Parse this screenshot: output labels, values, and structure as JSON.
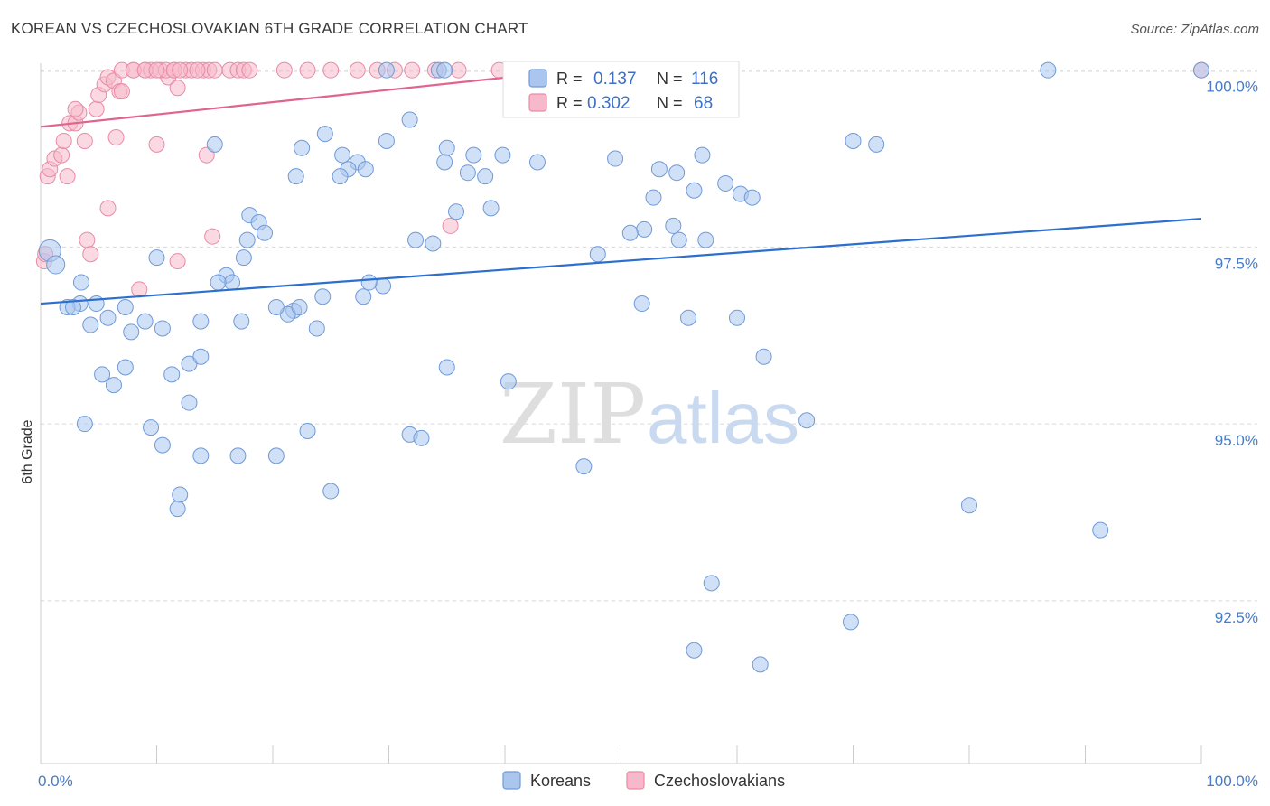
{
  "title": "KOREAN VS CZECHOSLOVAKIAN 6TH GRADE CORRELATION CHART",
  "source": "Source: ZipAtlas.com",
  "colors": {
    "korean_fill": "#aac6ee",
    "korean_stroke": "#6f9ad8",
    "korean_line": "#2d6fce",
    "czech_fill": "#f6b9cb",
    "czech_stroke": "#ea8aa6",
    "czech_line": "#e0648d",
    "tick_text": "#4a7cc4",
    "grid": "#d8d8d8"
  },
  "legend": {
    "r_label": "R =",
    "n_label": "N =",
    "koreans": {
      "r": "0.137",
      "n": "116"
    },
    "czechoslovakians": {
      "r": "0.302",
      "n": "68"
    }
  },
  "watermark": {
    "zip": "ZIP",
    "atlas": "atlas"
  },
  "chart_data": {
    "type": "scatter",
    "title": "KOREAN VS CZECHOSLOVAKIAN 6TH GRADE CORRELATION CHART",
    "xlabel": "",
    "ylabel": "6th Grade",
    "xlim": [
      0,
      100
    ],
    "ylim": [
      90.2,
      100.2
    ],
    "x_tick_labels": [
      "0.0%",
      "100.0%"
    ],
    "y_ticks": [
      92.5,
      95.0,
      97.5,
      100.0
    ],
    "y_tick_labels": [
      "92.5%",
      "95.0%",
      "97.5%",
      "100.0%"
    ],
    "series": [
      {
        "name": "Koreans",
        "trend": {
          "x": [
            0,
            100
          ],
          "y": [
            96.7,
            97.9
          ]
        },
        "points": [
          [
            0.8,
            97.45
          ],
          [
            1.3,
            97.25
          ],
          [
            3.4,
            96.7
          ],
          [
            2.3,
            96.65
          ],
          [
            2.8,
            96.65
          ],
          [
            4.8,
            96.7
          ],
          [
            3.5,
            97.0
          ],
          [
            4.3,
            96.4
          ],
          [
            5.8,
            96.5
          ],
          [
            7.3,
            96.65
          ],
          [
            9.0,
            96.45
          ],
          [
            7.8,
            96.3
          ],
          [
            10.5,
            96.35
          ],
          [
            13.8,
            96.45
          ],
          [
            16.0,
            97.1
          ],
          [
            17.5,
            97.35
          ],
          [
            16.5,
            97.0
          ],
          [
            10.0,
            97.35
          ],
          [
            5.3,
            95.7
          ],
          [
            6.3,
            95.55
          ],
          [
            7.3,
            95.8
          ],
          [
            11.3,
            95.7
          ],
          [
            12.8,
            95.85
          ],
          [
            13.8,
            95.95
          ],
          [
            12.8,
            95.3
          ],
          [
            9.5,
            94.95
          ],
          [
            10.5,
            94.7
          ],
          [
            3.8,
            95.0
          ],
          [
            13.8,
            94.55
          ],
          [
            17.0,
            94.55
          ],
          [
            20.3,
            94.55
          ],
          [
            23.0,
            94.9
          ],
          [
            12.0,
            94.0
          ],
          [
            11.8,
            93.8
          ],
          [
            25.0,
            94.05
          ],
          [
            31.8,
            94.85
          ],
          [
            32.8,
            94.8
          ],
          [
            35.0,
            95.8
          ],
          [
            40.3,
            95.6
          ],
          [
            46.8,
            94.4
          ],
          [
            51.8,
            96.7
          ],
          [
            55.8,
            96.5
          ],
          [
            60.0,
            96.5
          ],
          [
            62.3,
            95.95
          ],
          [
            66.0,
            95.05
          ],
          [
            80.0,
            93.85
          ],
          [
            91.3,
            93.5
          ],
          [
            69.8,
            92.2
          ],
          [
            57.8,
            92.75
          ],
          [
            56.3,
            91.8
          ],
          [
            62.0,
            91.6
          ],
          [
            70.0,
            99.0
          ],
          [
            72.0,
            98.95
          ],
          [
            57.0,
            98.8
          ],
          [
            59.0,
            98.4
          ],
          [
            60.3,
            98.25
          ],
          [
            61.3,
            98.2
          ],
          [
            56.3,
            98.3
          ],
          [
            53.3,
            98.6
          ],
          [
            54.8,
            98.55
          ],
          [
            52.8,
            98.2
          ],
          [
            54.5,
            97.8
          ],
          [
            52.0,
            97.75
          ],
          [
            55.0,
            97.6
          ],
          [
            57.3,
            97.6
          ],
          [
            48.0,
            97.4
          ],
          [
            50.8,
            97.7
          ],
          [
            42.8,
            98.7
          ],
          [
            39.8,
            98.8
          ],
          [
            35.0,
            98.9
          ],
          [
            37.3,
            98.8
          ],
          [
            38.3,
            98.5
          ],
          [
            36.8,
            98.55
          ],
          [
            35.8,
            98.0
          ],
          [
            38.8,
            98.05
          ],
          [
            31.8,
            99.3
          ],
          [
            34.8,
            98.7
          ],
          [
            33.8,
            97.55
          ],
          [
            32.3,
            97.6
          ],
          [
            29.8,
            99.0
          ],
          [
            26.0,
            98.8
          ],
          [
            27.3,
            98.7
          ],
          [
            28.0,
            98.6
          ],
          [
            26.5,
            98.6
          ],
          [
            25.8,
            98.5
          ],
          [
            24.5,
            99.1
          ],
          [
            22.5,
            98.9
          ],
          [
            22.0,
            98.5
          ],
          [
            29.5,
            96.95
          ],
          [
            28.3,
            97.0
          ],
          [
            27.8,
            96.8
          ],
          [
            23.8,
            96.35
          ],
          [
            24.3,
            96.8
          ],
          [
            21.8,
            96.6
          ],
          [
            21.3,
            96.55
          ],
          [
            22.3,
            96.65
          ],
          [
            20.3,
            96.65
          ],
          [
            17.3,
            96.45
          ],
          [
            18.0,
            97.95
          ],
          [
            18.8,
            97.85
          ],
          [
            19.3,
            97.7
          ],
          [
            17.8,
            97.6
          ],
          [
            15.0,
            98.95
          ],
          [
            15.3,
            97.0
          ],
          [
            34.3,
            100.0
          ],
          [
            34.8,
            100.0
          ],
          [
            29.8,
            100.0
          ],
          [
            86.8,
            100.0
          ],
          [
            100.0,
            100.0
          ],
          [
            52.5,
            100.0
          ],
          [
            56.5,
            100.0
          ],
          [
            43.5,
            100.0
          ],
          [
            42.3,
            99.6
          ],
          [
            49.5,
            98.75
          ]
        ]
      },
      {
        "name": "Czechoslovakians",
        "trend": {
          "x": [
            0,
            46
          ],
          "y": [
            99.2,
            100.0
          ]
        },
        "points": [
          [
            0.3,
            97.3
          ],
          [
            0.4,
            97.4
          ],
          [
            0.6,
            98.5
          ],
          [
            0.8,
            98.6
          ],
          [
            1.2,
            98.75
          ],
          [
            1.8,
            98.8
          ],
          [
            2.3,
            98.5
          ],
          [
            2.0,
            99.0
          ],
          [
            2.5,
            99.25
          ],
          [
            3.0,
            99.25
          ],
          [
            3.3,
            99.4
          ],
          [
            3.8,
            99.0
          ],
          [
            4.8,
            99.45
          ],
          [
            5.0,
            99.65
          ],
          [
            5.5,
            99.8
          ],
          [
            5.8,
            99.9
          ],
          [
            6.3,
            99.85
          ],
          [
            6.8,
            99.7
          ],
          [
            7.0,
            99.7
          ],
          [
            6.5,
            99.05
          ],
          [
            10.0,
            98.95
          ],
          [
            14.3,
            98.8
          ],
          [
            14.8,
            97.65
          ],
          [
            11.8,
            97.3
          ],
          [
            8.5,
            96.9
          ],
          [
            5.8,
            98.05
          ],
          [
            4.0,
            97.6
          ],
          [
            4.3,
            97.4
          ],
          [
            3.0,
            99.45
          ],
          [
            11.0,
            99.9
          ],
          [
            11.8,
            99.75
          ],
          [
            7.0,
            100.0
          ],
          [
            8.0,
            100.0
          ],
          [
            9.0,
            100.0
          ],
          [
            9.5,
            100.0
          ],
          [
            10.3,
            100.0
          ],
          [
            10.8,
            100.0
          ],
          [
            11.5,
            100.0
          ],
          [
            12.5,
            100.0
          ],
          [
            13.0,
            100.0
          ],
          [
            14.0,
            100.0
          ],
          [
            14.5,
            100.0
          ],
          [
            15.0,
            100.0
          ],
          [
            16.3,
            100.0
          ],
          [
            17.0,
            100.0
          ],
          [
            17.5,
            100.0
          ],
          [
            18.0,
            100.0
          ],
          [
            21.0,
            100.0
          ],
          [
            23.0,
            100.0
          ],
          [
            25.0,
            100.0
          ],
          [
            27.3,
            100.0
          ],
          [
            29.0,
            100.0
          ],
          [
            30.5,
            100.0
          ],
          [
            32.0,
            100.0
          ],
          [
            34.0,
            100.0
          ],
          [
            36.0,
            100.0
          ],
          [
            39.5,
            100.0
          ],
          [
            40.5,
            100.0
          ],
          [
            42.8,
            100.0
          ],
          [
            45.8,
            100.0
          ],
          [
            35.3,
            97.8
          ],
          [
            100.0,
            100.0
          ],
          [
            8.0,
            100.0
          ],
          [
            9.0,
            100.0
          ],
          [
            10.0,
            100.0
          ],
          [
            11.5,
            100.0
          ],
          [
            12.0,
            100.0
          ],
          [
            13.5,
            100.0
          ]
        ]
      }
    ]
  },
  "bottom_legend": {
    "koreans": "Koreans",
    "czechoslovakians": "Czechoslovakians"
  }
}
